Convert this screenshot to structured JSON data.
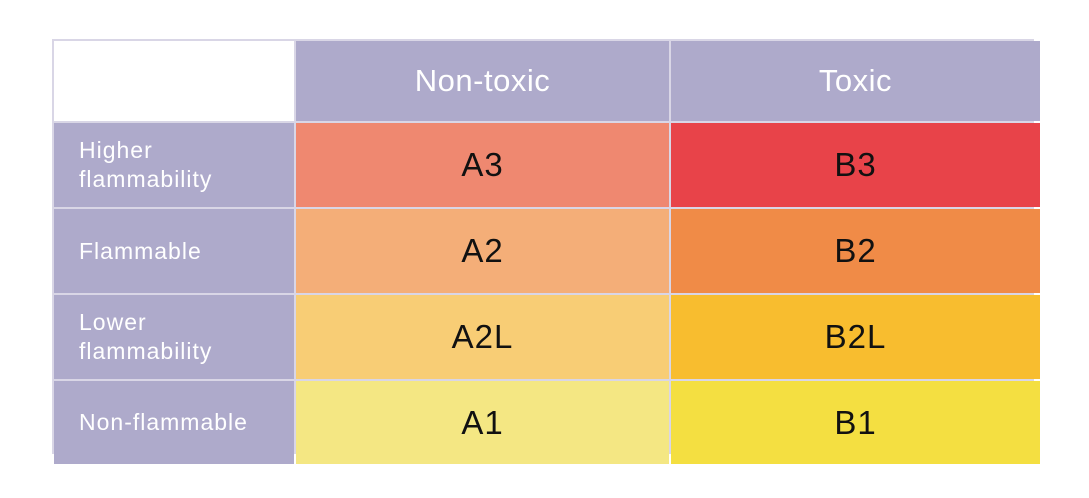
{
  "chart_data": {
    "type": "table",
    "columns": [
      "Non-toxic",
      "Toxic"
    ],
    "rows": [
      {
        "label": "Higher\nflammability",
        "cells": [
          "A3",
          "B3"
        ]
      },
      {
        "label": "Flammable",
        "cells": [
          "A2",
          "B2"
        ]
      },
      {
        "label": "Lower\nflammability",
        "cells": [
          "A2L",
          "B2L"
        ]
      },
      {
        "label": "Non-flammable",
        "cells": [
          "A1",
          "B1"
        ]
      }
    ],
    "cell_colors": [
      [
        "#ef8870",
        "#e84349"
      ],
      [
        "#f4ae78",
        "#f08b47"
      ],
      [
        "#f8cd75",
        "#f8bd2f"
      ],
      [
        "#f4e783",
        "#f4df41"
      ]
    ],
    "header_color": "#aeaacb"
  }
}
